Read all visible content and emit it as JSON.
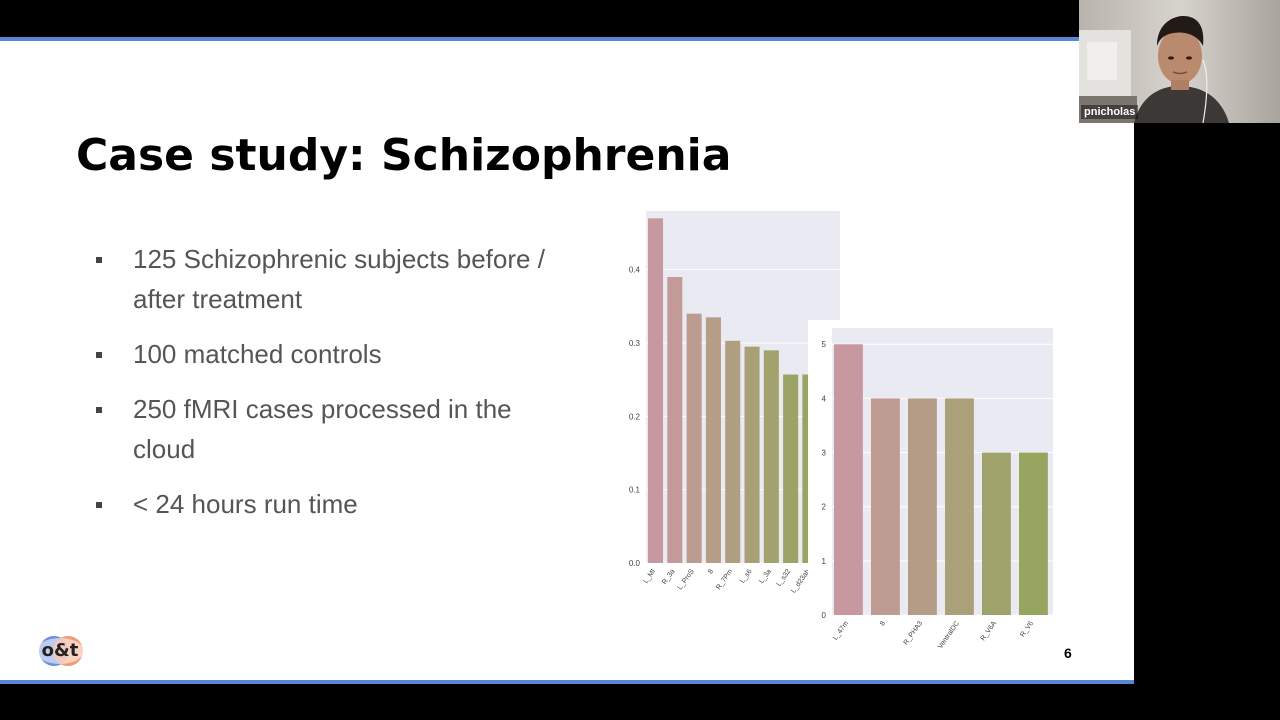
{
  "slide": {
    "title": "Case study: Schizophrenia",
    "bullets": [
      "125 Schizophrenic subjects before / after treatment",
      "100 matched controls",
      "250 fMRI cases processed in the cloud",
      "< 24 hours run time"
    ],
    "logo_text": "o&t",
    "slide_number": "6"
  },
  "video": {
    "participant_name": "pnicholas"
  },
  "colors": {
    "accent": "#5a86d3"
  },
  "chart_data": [
    {
      "type": "bar",
      "categories": [
        "L_MI",
        "R_3a",
        "L_ProS",
        "8",
        "R_7Pm",
        "L_s6",
        "L_3a",
        "L_s32",
        "L_d23ab"
      ],
      "values": [
        0.47,
        0.39,
        0.34,
        0.335,
        0.303,
        0.295,
        0.29,
        0.257,
        0.257
      ],
      "ylim": [
        0,
        0.48
      ],
      "yticks": [
        0.0,
        0.1,
        0.2,
        0.3,
        0.4
      ],
      "ytick_labels": [
        "0.0",
        "0.1",
        "0.2",
        "0.3",
        "0.4"
      ],
      "grid": true
    },
    {
      "type": "bar",
      "categories": [
        "L_47m",
        "8",
        "R_PHA3",
        "L_VentralDC",
        "R_V6A",
        "R_V6"
      ],
      "values": [
        5,
        4,
        4,
        4,
        3,
        3
      ],
      "ylim": [
        0,
        5.3
      ],
      "yticks": [
        0,
        1,
        2,
        3,
        4,
        5
      ],
      "ytick_labels": [
        "0",
        "1",
        "2",
        "3",
        "4",
        "5"
      ],
      "grid": true
    }
  ]
}
